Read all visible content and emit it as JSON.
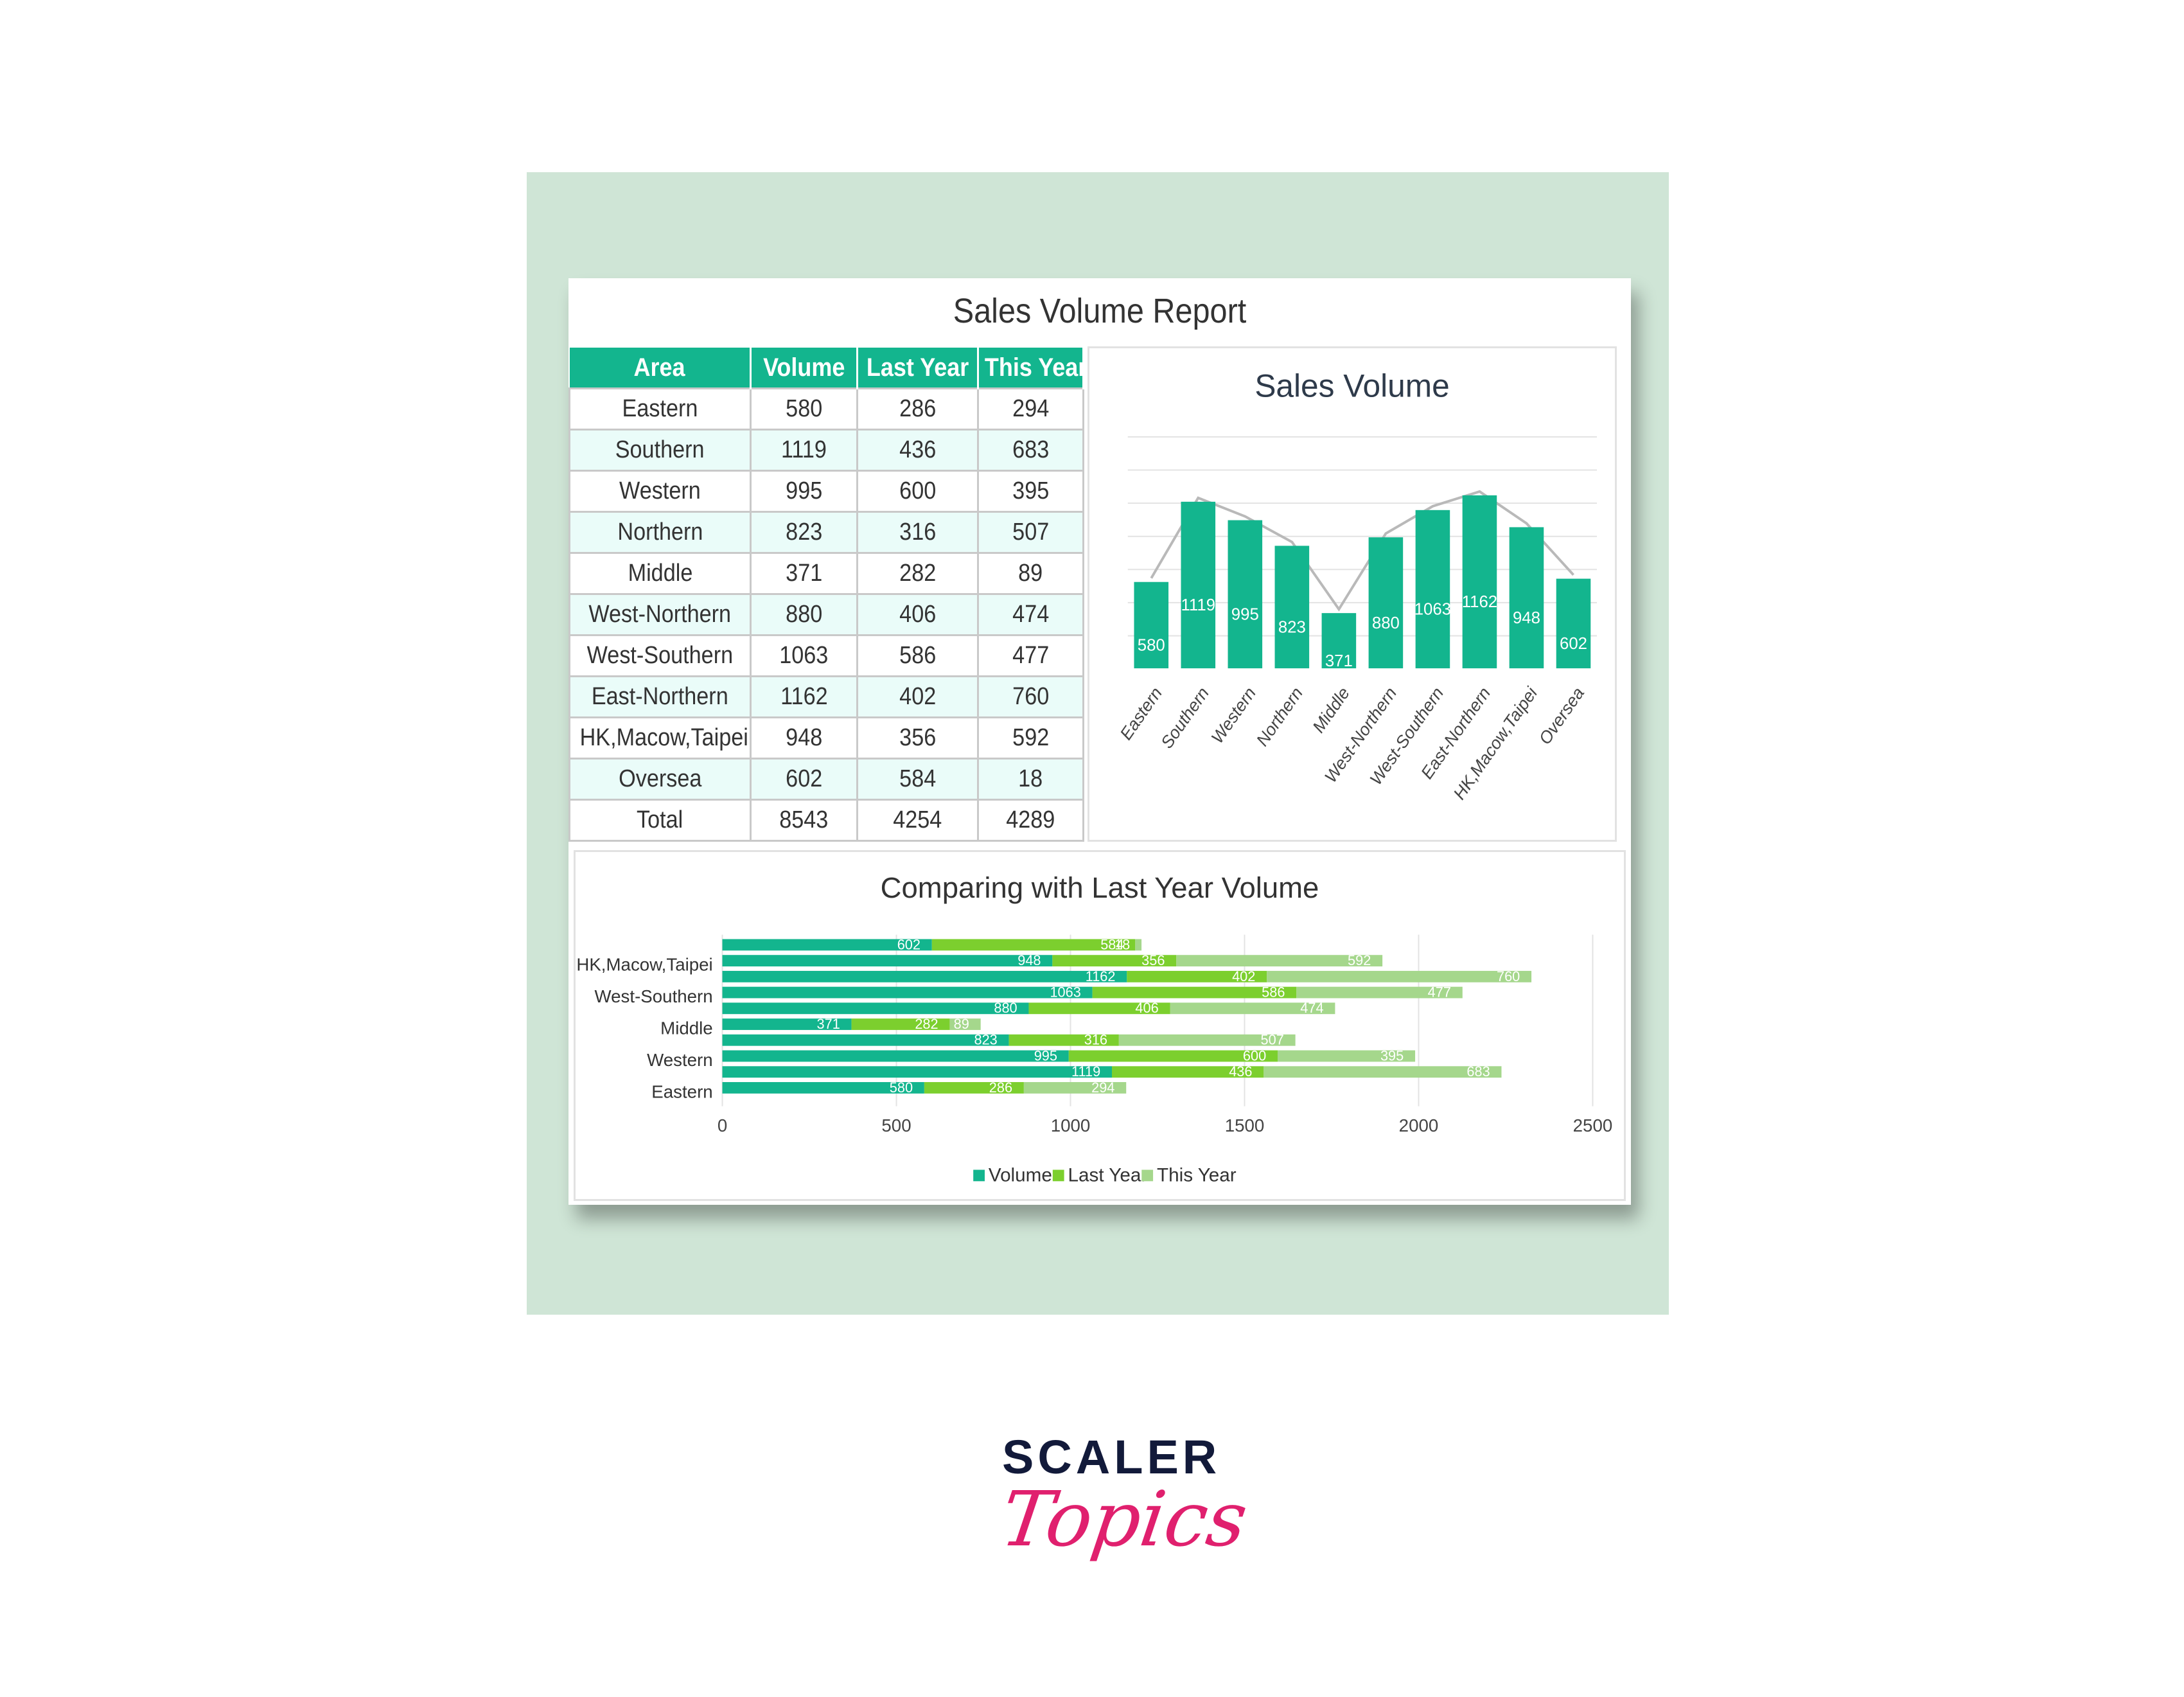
{
  "report": {
    "title": "Sales Volume Report"
  },
  "table": {
    "headers": [
      "Area",
      "Volume",
      "Last Year",
      "This Year"
    ],
    "rows": [
      [
        "Eastern",
        "580",
        "286",
        "294"
      ],
      [
        "Southern",
        "1119",
        "436",
        "683"
      ],
      [
        "Western",
        "995",
        "600",
        "395"
      ],
      [
        "Northern",
        "823",
        "316",
        "507"
      ],
      [
        "Middle",
        "371",
        "282",
        "89"
      ],
      [
        "West-Northern",
        "880",
        "406",
        "474"
      ],
      [
        "West-Southern",
        "1063",
        "586",
        "477"
      ],
      [
        "East-Northern",
        "1162",
        "402",
        "760"
      ],
      [
        "HK,Macow,Taipei",
        "948",
        "356",
        "592"
      ],
      [
        "Oversea",
        "602",
        "584",
        "18"
      ]
    ],
    "total": [
      "Total",
      "8543",
      "4254",
      "4289"
    ]
  },
  "chart_data": [
    {
      "type": "bar",
      "title": "Sales Volume",
      "categories": [
        "Eastern",
        "Southern",
        "Western",
        "Northern",
        "Middle",
        "West-Northern",
        "West-Southern",
        "East-Northern",
        "HK,Macow,Taipei",
        "Oversea"
      ],
      "series": [
        {
          "values": [
            580,
            1119,
            995,
            823,
            371,
            880,
            1063,
            1162,
            948,
            602
          ]
        }
      ],
      "overlay_line": true,
      "grid": true,
      "xlabel": "",
      "ylabel": ""
    },
    {
      "type": "bar",
      "orientation": "horizontal",
      "stacked": true,
      "title": "Comparing with Last Year Volume",
      "categories": [
        "Eastern",
        "Southern",
        "Western",
        "Northern",
        "Middle",
        "West-Northern",
        "West-Southern",
        "East-Northern",
        "HK,Macow,Taipei",
        "Oversea"
      ],
      "visible_category_labels": [
        "HK,Macow,Taipei",
        "West-Southern",
        "Middle",
        "Western",
        "Eastern"
      ],
      "series": [
        {
          "name": "Volume",
          "values": [
            580,
            1119,
            995,
            823,
            371,
            880,
            1063,
            1162,
            948,
            602
          ]
        },
        {
          "name": "Last Year",
          "values": [
            286,
            436,
            600,
            316,
            282,
            406,
            586,
            402,
            356,
            584
          ]
        },
        {
          "name": "This Year",
          "values": [
            294,
            683,
            395,
            507,
            89,
            474,
            477,
            760,
            592,
            18
          ]
        }
      ],
      "xlim": [
        0,
        2500
      ],
      "xticks": [
        0,
        500,
        1000,
        1500,
        2000,
        2500
      ],
      "legend": "bottom",
      "grid": true,
      "xlabel": "",
      "ylabel": ""
    }
  ],
  "colors": {
    "volume": "#13b58e",
    "last_year": "#7ccf2e",
    "this_year": "#a5d78c",
    "header": "#13b58e",
    "logo_dark": "#121a3a",
    "logo_pink": "#e0206e"
  },
  "logo": {
    "line1": "SCALER",
    "line2": "Topics"
  }
}
